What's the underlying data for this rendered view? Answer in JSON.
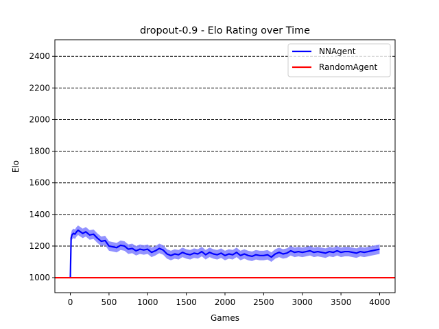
{
  "chart_data": {
    "type": "line",
    "title": "dropout-0.9 - Elo Rating over Time",
    "xlabel": "Games",
    "ylabel": "Elo",
    "xlim": [
      -200,
      4200
    ],
    "ylim": [
      905,
      2505
    ],
    "xticks": [
      0,
      500,
      1000,
      1500,
      2000,
      2500,
      3000,
      3500,
      4000
    ],
    "xtick_labels": [
      "0",
      "500",
      "1000",
      "1500",
      "2000",
      "2500",
      "3000",
      "3500",
      "4000"
    ],
    "yticks": [
      1000,
      1200,
      1400,
      1600,
      1800,
      2000,
      2200,
      2400
    ],
    "ytick_labels": [
      "1000",
      "1200",
      "1400",
      "1600",
      "1800",
      "2000",
      "2200",
      "2400"
    ],
    "grid": "horizontal dashed at y ticks",
    "legend_position": "top-right",
    "series": [
      {
        "name": "NNAgent",
        "color": "#0000ff",
        "band_color": "#7f7fff",
        "band_halfwidth": 30,
        "x": [
          0,
          10,
          20,
          40,
          60,
          80,
          100,
          130,
          160,
          200,
          250,
          300,
          350,
          400,
          450,
          500,
          550,
          600,
          650,
          700,
          750,
          800,
          850,
          900,
          950,
          1000,
          1050,
          1100,
          1150,
          1200,
          1250,
          1300,
          1350,
          1400,
          1450,
          1500,
          1550,
          1600,
          1650,
          1700,
          1750,
          1800,
          1850,
          1900,
          1950,
          2000,
          2050,
          2100,
          2150,
          2200,
          2250,
          2300,
          2350,
          2400,
          2450,
          2500,
          2550,
          2600,
          2650,
          2700,
          2750,
          2800,
          2850,
          2900,
          2950,
          3000,
          3050,
          3100,
          3150,
          3200,
          3250,
          3300,
          3350,
          3400,
          3450,
          3500,
          3550,
          3600,
          3650,
          3700,
          3750,
          3800,
          3850,
          3900,
          3950,
          4000
        ],
        "y": [
          1000,
          1250,
          1270,
          1280,
          1275,
          1290,
          1300,
          1290,
          1280,
          1290,
          1270,
          1275,
          1250,
          1230,
          1235,
          1200,
          1195,
          1190,
          1205,
          1200,
          1180,
          1185,
          1170,
          1180,
          1175,
          1180,
          1160,
          1170,
          1185,
          1175,
          1150,
          1140,
          1150,
          1145,
          1160,
          1150,
          1145,
          1155,
          1150,
          1165,
          1145,
          1160,
          1150,
          1145,
          1155,
          1140,
          1150,
          1145,
          1160,
          1140,
          1150,
          1140,
          1135,
          1145,
          1140,
          1140,
          1145,
          1130,
          1150,
          1160,
          1150,
          1155,
          1170,
          1160,
          1165,
          1160,
          1165,
          1170,
          1160,
          1165,
          1160,
          1155,
          1165,
          1160,
          1170,
          1160,
          1165,
          1165,
          1160,
          1155,
          1165,
          1160,
          1165,
          1170,
          1175,
          1180
        ]
      },
      {
        "name": "RandomAgent",
        "color": "#ff0000",
        "x": [
          -200,
          4200
        ],
        "y": [
          1000,
          1000
        ]
      }
    ]
  }
}
